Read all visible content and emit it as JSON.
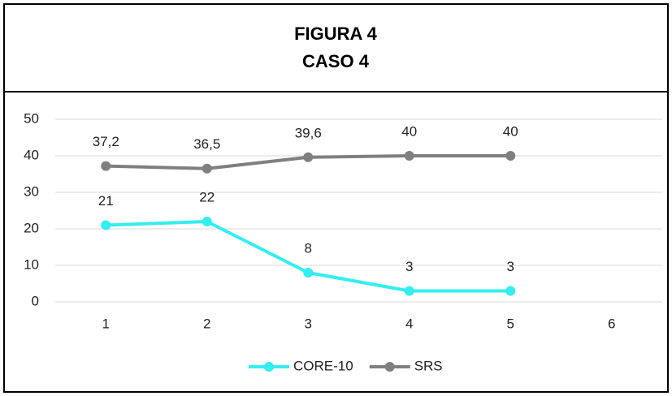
{
  "chart_data": {
    "type": "line",
    "title": "FIGURA 4",
    "subtitle": "CASO 4",
    "categories": [
      "1",
      "2",
      "3",
      "4",
      "5",
      "6"
    ],
    "series": [
      {
        "name": "CORE-10",
        "color": "#33eef0",
        "values": [
          21,
          22,
          8,
          3,
          3,
          null
        ]
      },
      {
        "name": "SRS",
        "color": "#7f7f7f",
        "values": [
          37.2,
          36.5,
          39.6,
          40,
          40,
          null
        ],
        "value_labels": [
          "37,2",
          "36,5",
          "39,6",
          "40",
          "40",
          null
        ]
      }
    ],
    "ylim": [
      0,
      50
    ],
    "yticks": [
      0,
      10,
      20,
      30,
      40,
      50
    ],
    "grid": true,
    "legend": "bottom"
  }
}
